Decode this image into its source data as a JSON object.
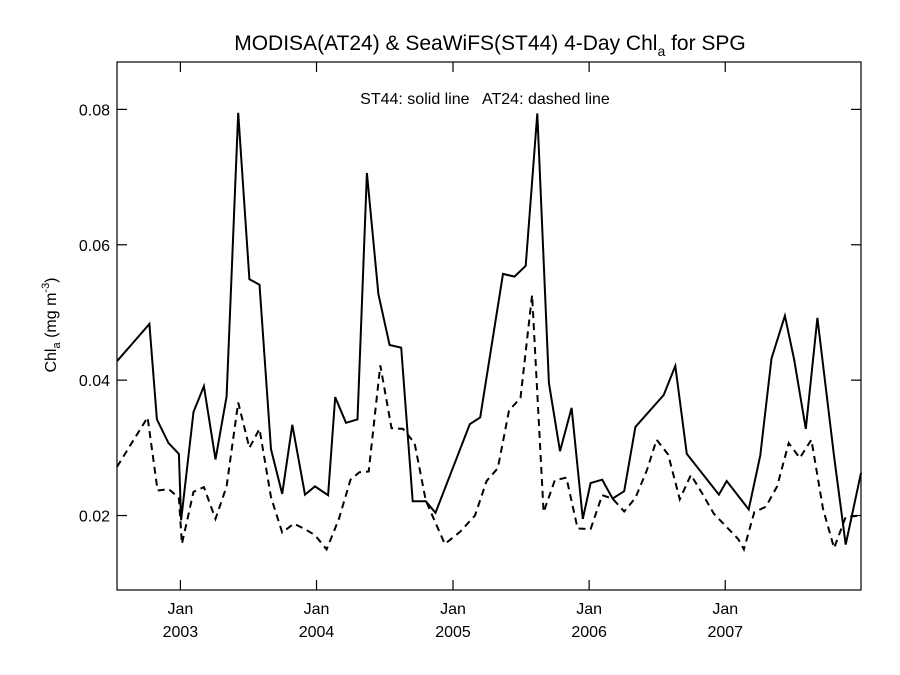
{
  "chart_data": {
    "type": "line",
    "title": "MODISA(AT24) & SeaWiFS(ST44) 4-Day Chl",
    "title_sub": "a",
    "title_suffix": " for SPG",
    "annotation": "ST44: solid line   AT24: dashed line",
    "ylabel": "Chl",
    "ylabel_sub": "a",
    "ylabel_unit": " (mg m",
    "ylabel_sup": "-3",
    "ylabel_close": ")",
    "xlim": [
      "2002-07-15",
      "2007-12-31"
    ],
    "ylim": [
      0.009,
      0.087
    ],
    "y_ticks": [
      {
        "value": 0.02,
        "label": "0.02"
      },
      {
        "value": 0.04,
        "label": "0.04"
      },
      {
        "value": 0.06,
        "label": "0.06"
      },
      {
        "value": 0.08,
        "label": "0.08"
      }
    ],
    "x_ticks": [
      {
        "date": "2003-01-01",
        "month": "Jan",
        "year": "2003"
      },
      {
        "date": "2004-01-01",
        "month": "Jan",
        "year": "2004"
      },
      {
        "date": "2005-01-01",
        "month": "Jan",
        "year": "2005"
      },
      {
        "date": "2006-01-01",
        "month": "Jan",
        "year": "2006"
      },
      {
        "date": "2007-01-01",
        "month": "Jan",
        "year": "2007"
      }
    ],
    "series": [
      {
        "style": "solid",
        "color": "#000000",
        "points": [
          [
            "2002-07-15",
            0.0428
          ],
          [
            "2002-10-10",
            0.0483
          ],
          [
            "2002-10-30",
            0.0342
          ],
          [
            "2002-11-30",
            0.0307
          ],
          [
            "2002-12-28",
            0.0291
          ],
          [
            "2003-01-03",
            0.0193
          ],
          [
            "2003-02-05",
            0.0353
          ],
          [
            "2003-03-05",
            0.0391
          ],
          [
            "2003-04-05",
            0.0283
          ],
          [
            "2003-05-05",
            0.0376
          ],
          [
            "2003-06-05",
            0.0795
          ],
          [
            "2003-07-05",
            0.0549
          ],
          [
            "2003-08-01",
            0.0541
          ],
          [
            "2003-09-01",
            0.0298
          ],
          [
            "2003-10-01",
            0.0232
          ],
          [
            "2003-10-28",
            0.0334
          ],
          [
            "2003-12-01",
            0.0231
          ],
          [
            "2003-12-28",
            0.0243
          ],
          [
            "2004-02-01",
            0.023
          ],
          [
            "2004-02-20",
            0.0375
          ],
          [
            "2004-03-20",
            0.0337
          ],
          [
            "2004-04-20",
            0.0342
          ],
          [
            "2004-05-15",
            0.0706
          ],
          [
            "2004-06-15",
            0.0527
          ],
          [
            "2004-07-15",
            0.0452
          ],
          [
            "2004-08-15",
            0.0448
          ],
          [
            "2004-09-15",
            0.0221
          ],
          [
            "2004-10-20",
            0.0221
          ],
          [
            "2004-11-15",
            0.0204
          ],
          [
            "2005-02-15",
            0.0335
          ],
          [
            "2005-03-15",
            0.0345
          ],
          [
            "2005-05-15",
            0.0557
          ],
          [
            "2005-06-15",
            0.0553
          ],
          [
            "2005-07-15",
            0.0569
          ],
          [
            "2005-08-15",
            0.0794
          ],
          [
            "2005-09-15",
            0.0396
          ],
          [
            "2005-10-15",
            0.0295
          ],
          [
            "2005-11-15",
            0.0359
          ],
          [
            "2005-12-15",
            0.0195
          ],
          [
            "2006-01-05",
            0.0248
          ],
          [
            "2006-02-05",
            0.0253
          ],
          [
            "2006-03-05",
            0.0225
          ],
          [
            "2006-04-05",
            0.0236
          ],
          [
            "2006-05-05",
            0.0331
          ],
          [
            "2006-07-20",
            0.0378
          ],
          [
            "2006-08-20",
            0.0421
          ],
          [
            "2006-09-20",
            0.0291
          ],
          [
            "2006-12-15",
            0.0231
          ],
          [
            "2007-01-05",
            0.0251
          ],
          [
            "2007-03-05",
            0.0209
          ],
          [
            "2007-04-05",
            0.0289
          ],
          [
            "2007-05-05",
            0.0432
          ],
          [
            "2007-06-10",
            0.0495
          ],
          [
            "2007-07-05",
            0.043
          ],
          [
            "2007-08-05",
            0.0328
          ],
          [
            "2007-09-05",
            0.0492
          ],
          [
            "2007-10-20",
            0.0287
          ],
          [
            "2007-11-20",
            0.0157
          ],
          [
            "2007-12-31",
            0.0263
          ]
        ]
      },
      {
        "style": "dashed",
        "color": "#000000",
        "points": [
          [
            "2002-07-15",
            0.0272
          ],
          [
            "2002-10-05",
            0.0345
          ],
          [
            "2002-11-01",
            0.0237
          ],
          [
            "2002-12-01",
            0.0239
          ],
          [
            "2002-12-28",
            0.0226
          ],
          [
            "2003-01-05",
            0.0158
          ],
          [
            "2003-02-05",
            0.0235
          ],
          [
            "2003-03-05",
            0.0242
          ],
          [
            "2003-04-05",
            0.0195
          ],
          [
            "2003-05-05",
            0.0243
          ],
          [
            "2003-06-05",
            0.0367
          ],
          [
            "2003-07-05",
            0.03
          ],
          [
            "2003-08-01",
            0.0328
          ],
          [
            "2003-09-01",
            0.0227
          ],
          [
            "2003-10-01",
            0.0175
          ],
          [
            "2003-11-01",
            0.0188
          ],
          [
            "2003-12-01",
            0.018
          ],
          [
            "2003-12-28",
            0.0171
          ],
          [
            "2004-01-28",
            0.015
          ],
          [
            "2004-03-01",
            0.0195
          ],
          [
            "2004-04-01",
            0.0253
          ],
          [
            "2004-04-25",
            0.0264
          ],
          [
            "2004-05-20",
            0.0265
          ],
          [
            "2004-06-20",
            0.0422
          ],
          [
            "2004-07-20",
            0.0329
          ],
          [
            "2004-08-20",
            0.0328
          ],
          [
            "2004-09-20",
            0.0307
          ],
          [
            "2004-10-20",
            0.0222
          ],
          [
            "2004-12-10",
            0.0158
          ],
          [
            "2005-01-20",
            0.0176
          ],
          [
            "2005-03-01",
            0.02
          ],
          [
            "2005-04-01",
            0.0251
          ],
          [
            "2005-05-01",
            0.027
          ],
          [
            "2005-05-31",
            0.0355
          ],
          [
            "2005-07-01",
            0.0374
          ],
          [
            "2005-08-01",
            0.0526
          ],
          [
            "2005-09-01",
            0.0205
          ],
          [
            "2005-10-01",
            0.0252
          ],
          [
            "2005-11-01",
            0.0256
          ],
          [
            "2005-12-01",
            0.0181
          ],
          [
            "2006-01-05",
            0.018
          ],
          [
            "2006-02-05",
            0.023
          ],
          [
            "2006-03-05",
            0.0225
          ],
          [
            "2006-04-05",
            0.0206
          ],
          [
            "2006-05-05",
            0.0226
          ],
          [
            "2006-06-05",
            0.0267
          ],
          [
            "2006-07-01",
            0.0312
          ],
          [
            "2006-08-01",
            0.029
          ],
          [
            "2006-09-01",
            0.0224
          ],
          [
            "2006-10-01",
            0.026
          ],
          [
            "2006-11-01",
            0.0232
          ],
          [
            "2006-12-01",
            0.0203
          ],
          [
            "2007-02-05",
            0.0165
          ],
          [
            "2007-02-20",
            0.015
          ],
          [
            "2007-03-20",
            0.0205
          ],
          [
            "2007-04-20",
            0.0213
          ],
          [
            "2007-05-20",
            0.0243
          ],
          [
            "2007-06-20",
            0.0307
          ],
          [
            "2007-07-20",
            0.0285
          ],
          [
            "2007-08-20",
            0.0312
          ],
          [
            "2007-09-20",
            0.021
          ],
          [
            "2007-10-20",
            0.0152
          ],
          [
            "2007-11-20",
            0.0198
          ],
          [
            "2007-12-31",
            0.02
          ]
        ]
      }
    ]
  }
}
